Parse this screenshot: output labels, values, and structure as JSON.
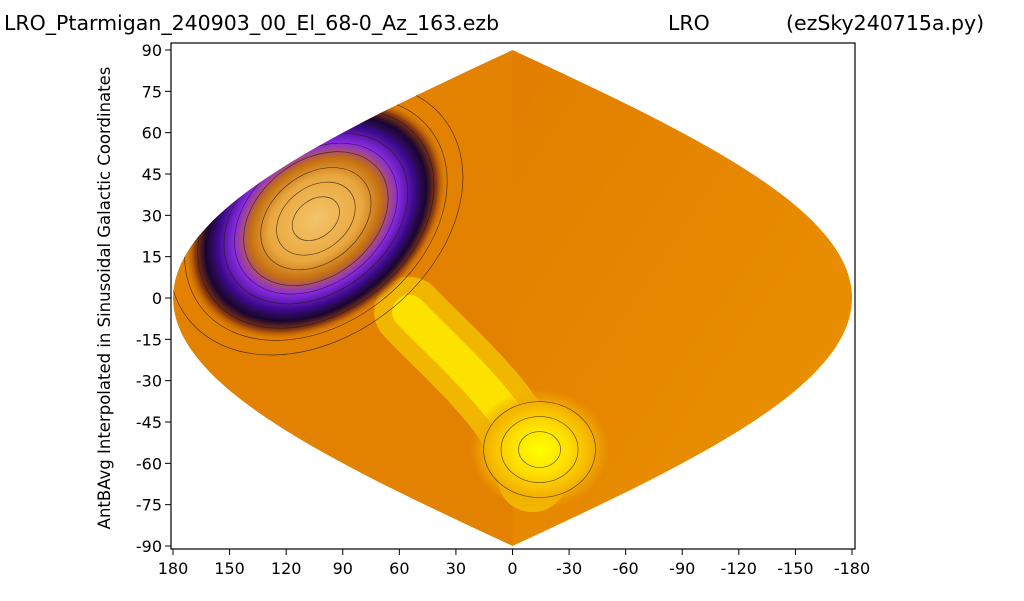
{
  "chart_data": {
    "type": "heatmap",
    "title_left": "LRO_Ptarmigan_240903_00_El_68-0_Az_163.ezb",
    "title_center": "LRO",
    "title_right": "(ezSky240715a.py)",
    "xlabel": "",
    "ylabel": "AntBAvg Interpolated in Sinusoidal Galactic Coordinates",
    "projection": "sinusoidal",
    "x_ticks": [
      "180",
      "150",
      "120",
      "90",
      "60",
      "30",
      "0",
      "-30",
      "-60",
      "-90",
      "-120",
      "-150",
      "-180"
    ],
    "x_tick_values": [
      180,
      150,
      120,
      90,
      60,
      30,
      0,
      -30,
      -60,
      -90,
      -120,
      -150,
      -180
    ],
    "y_ticks": [
      "90",
      "75",
      "60",
      "45",
      "30",
      "15",
      "0",
      "-15",
      "-30",
      "-45",
      "-60",
      "-75",
      "-90"
    ],
    "y_tick_values": [
      90,
      75,
      60,
      45,
      30,
      15,
      0,
      -15,
      -30,
      -45,
      -60,
      -75,
      -90
    ],
    "xlim": [
      180,
      -180
    ],
    "ylim": [
      -90,
      90
    ],
    "colormap": [
      "#000000",
      "#3d0a8c",
      "#8a2be2",
      "#a0522d",
      "#cd5c00",
      "#e07a00",
      "#f0a000",
      "#ffd700",
      "#ffff00"
    ],
    "background_color": "#e38200",
    "features": [
      {
        "kind": "minimum",
        "gal_lon": 120,
        "gal_lat": 15,
        "color": "#3d0a8c"
      },
      {
        "kind": "maximum",
        "gal_lon": -25,
        "gal_lat": -55,
        "color": "#ffff00"
      },
      {
        "kind": "ridge",
        "gal_lon_start": 55,
        "gal_lat_start": -5,
        "gal_lon_end": -25,
        "gal_lat_end": -65,
        "color": "#ffea00"
      }
    ],
    "grid": false,
    "legend": "none"
  }
}
